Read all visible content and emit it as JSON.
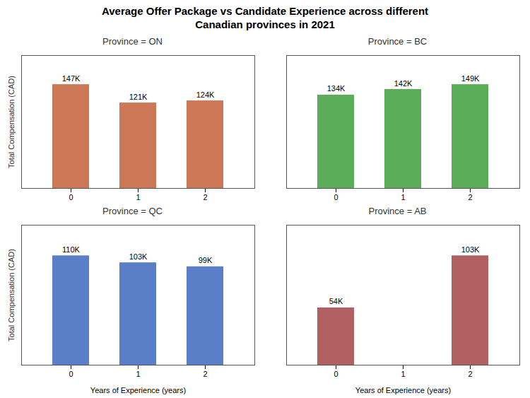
{
  "title": "Average Offer Package vs Candidate Experience across different\nCanadian provinces in 2021",
  "chart_data": [
    {
      "type": "bar",
      "title": "Province = ON",
      "categories": [
        "0",
        "1",
        "2"
      ],
      "values": [
        147000,
        121000,
        124000
      ],
      "value_labels": [
        "147K",
        "121K",
        "124K"
      ],
      "data_labels": true,
      "color": "#CC7755",
      "ylim": [
        0,
        188160
      ],
      "ylabel": "Total Compensation (CAD)",
      "tick_labels": "x",
      "grid": false
    },
    {
      "type": "bar",
      "title": "Province = BC",
      "categories": [
        "0",
        "1",
        "2"
      ],
      "values": [
        134000,
        142000,
        149000
      ],
      "value_labels": [
        "134K",
        "142K",
        "149K"
      ],
      "data_labels": true,
      "color": "#5BAD5A",
      "ylim": [
        0,
        190720
      ],
      "tick_labels": "x",
      "grid": false
    },
    {
      "type": "bar",
      "title": "Province = QC",
      "categories": [
        "0",
        "1",
        "2"
      ],
      "values": [
        110000,
        103000,
        99000
      ],
      "value_labels": [
        "110K",
        "103K",
        "99K"
      ],
      "data_labels": true,
      "color": "#5B7EC9",
      "ylim": [
        0,
        140800
      ],
      "xlabel": "Years of Experience (years)",
      "ylabel": "Total Compensation (CAD)",
      "tick_labels": "x",
      "grid": false
    },
    {
      "type": "bar",
      "title": "Province = AB",
      "categories": [
        "0",
        "1",
        "2"
      ],
      "values": [
        54000,
        0,
        103000
      ],
      "value_labels": [
        "54K",
        null,
        "103K"
      ],
      "data_labels": true,
      "color": "#B06060",
      "ylim": [
        0,
        131840
      ],
      "xlabel": "Years of Experience (years)",
      "tick_labels": "x",
      "grid": false
    }
  ]
}
